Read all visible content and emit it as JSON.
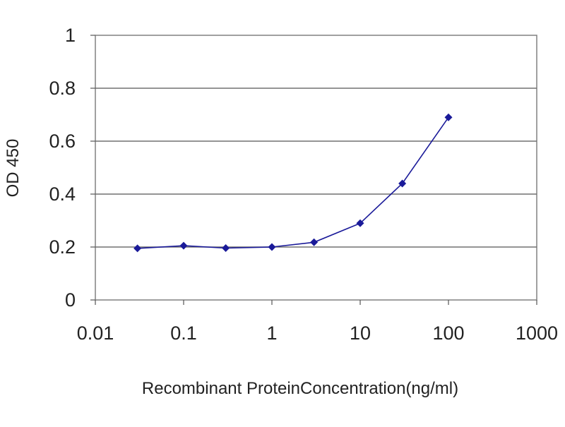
{
  "chart_data": {
    "type": "line",
    "title": "",
    "xlabel": "Recombinant ProteinConcentration(ng/ml)",
    "ylabel": "OD 450",
    "x_scale": "log",
    "xlim": [
      0.01,
      1000
    ],
    "ylim": [
      0,
      1
    ],
    "x_ticks": [
      "0.01",
      "0.1",
      "1",
      "10",
      "100",
      "1000"
    ],
    "y_ticks": [
      "0",
      "0.2",
      "0.4",
      "0.6",
      "0.8",
      "1"
    ],
    "grid": true,
    "legend": "none",
    "series": [
      {
        "color": "#1a1a99",
        "marker": "diamond",
        "x": [
          0.03,
          0.1,
          0.3,
          1,
          3,
          10,
          30,
          100
        ],
        "y": [
          0.195,
          0.205,
          0.196,
          0.2,
          0.218,
          0.29,
          0.44,
          0.69
        ]
      }
    ]
  }
}
